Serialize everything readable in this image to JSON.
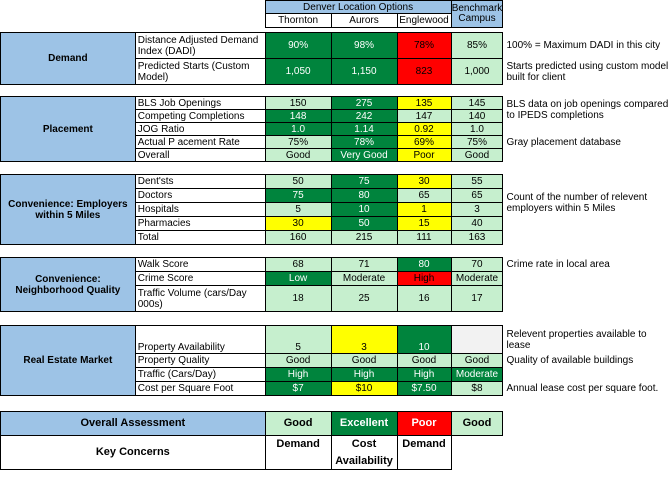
{
  "header": {
    "group_title": "Denver Location Options",
    "locations": [
      "Thornton",
      "Aurors",
      "Englewood"
    ],
    "benchmark": "Benchmark Campus"
  },
  "sections": [
    {
      "title": "Demand",
      "rows": [
        {
          "metric": "Distance Adjusted Demand Index (DADI)",
          "values": [
            "90%",
            "98%",
            "78%"
          ],
          "bench": "85%",
          "note": "100% = Maximum DADI in this city"
        },
        {
          "metric": "Predicted Starts (Custom Model)",
          "values": [
            "1,050",
            "1,150",
            "823"
          ],
          "bench": "1,000",
          "note": "Starts predicted using custom model built for client"
        }
      ]
    },
    {
      "title": "Placement",
      "rows": [
        {
          "metric": "BLS Job Openings",
          "values": [
            "150",
            "275",
            "135"
          ],
          "bench": "145",
          "note": "BLS data on job openings compared to IPEDS completions"
        },
        {
          "metric": "Competing Completions",
          "values": [
            "148",
            "242",
            "147"
          ],
          "bench": "140",
          "note": ""
        },
        {
          "metric": "JOG Ratio",
          "values": [
            "1.0",
            "1.14",
            "0.92"
          ],
          "bench": "1.0",
          "note": ""
        },
        {
          "metric": "Actual P acement Rate",
          "values": [
            "75%",
            "78%",
            "69%"
          ],
          "bench": "75%",
          "note": "Gray placement database"
        },
        {
          "metric": "Overall",
          "values": [
            "Good",
            "Very Good",
            "Poor"
          ],
          "bench": "Good",
          "note": ""
        }
      ]
    },
    {
      "title": "Convenience: Employers within 5 Miles",
      "rows": [
        {
          "metric": "Dent'sts",
          "values": [
            "50",
            "75",
            "30"
          ],
          "bench": "55",
          "note": "Count of the number of relevent employers within 5 Miles"
        },
        {
          "metric": "Doctors",
          "values": [
            "75",
            "80",
            "65"
          ],
          "bench": "65",
          "note": ""
        },
        {
          "metric": "Hospitals",
          "values": [
            "5",
            "10",
            "1"
          ],
          "bench": "3",
          "note": ""
        },
        {
          "metric": "Pharmacies",
          "values": [
            "30",
            "50",
            "15"
          ],
          "bench": "40",
          "note": ""
        },
        {
          "metric": "Total",
          "values": [
            "160",
            "215",
            "111"
          ],
          "bench": "163",
          "note": ""
        }
      ]
    },
    {
      "title": "Convenience: Neighborhood Quality",
      "rows": [
        {
          "metric": "Walk Score",
          "values": [
            "68",
            "71",
            "80"
          ],
          "bench": "70",
          "note": "Crime rate in local area"
        },
        {
          "metric": "Crime Score",
          "values": [
            "Low",
            "Moderate",
            "High"
          ],
          "bench": "Moderate",
          "note": ""
        },
        {
          "metric": "Traffic Volume (cars/Day 000s)",
          "values": [
            "18",
            "25",
            "16"
          ],
          "bench": "17",
          "note": ""
        }
      ]
    },
    {
      "title": "Real Estate Market",
      "rows": [
        {
          "metric": "Property Availability",
          "values": [
            "5",
            "3",
            "10"
          ],
          "bench": "",
          "note": "Relevent properties available to lease"
        },
        {
          "metric": "Property Quality",
          "values": [
            "Good",
            "Good",
            "Good"
          ],
          "bench": "Good",
          "note": "Quality of available buildings"
        },
        {
          "metric": "Traffic (Cars/Day)",
          "values": [
            "High",
            "High",
            "High"
          ],
          "bench": "Moderate",
          "note": ""
        },
        {
          "metric": "Cost per Square Foot",
          "values": [
            "$7",
            "$10",
            "$7.50"
          ],
          "bench": "$8",
          "note": "Annual lease cost per square foot."
        }
      ]
    }
  ],
  "overall": {
    "label": "Overall Assessment",
    "values": [
      "Good",
      "Excellent",
      "Poor"
    ],
    "bench": "Good"
  },
  "concerns": {
    "label": "Key Concerns",
    "values": [
      "Demand",
      "Cost",
      "Demand"
    ],
    "extra": "Availability"
  },
  "colors": {
    "dark_green": "#00843d",
    "light_green": "#c6efce",
    "yellow": "#ffff00",
    "red": "#ff0000",
    "header_blue": "#9dc3e6"
  }
}
